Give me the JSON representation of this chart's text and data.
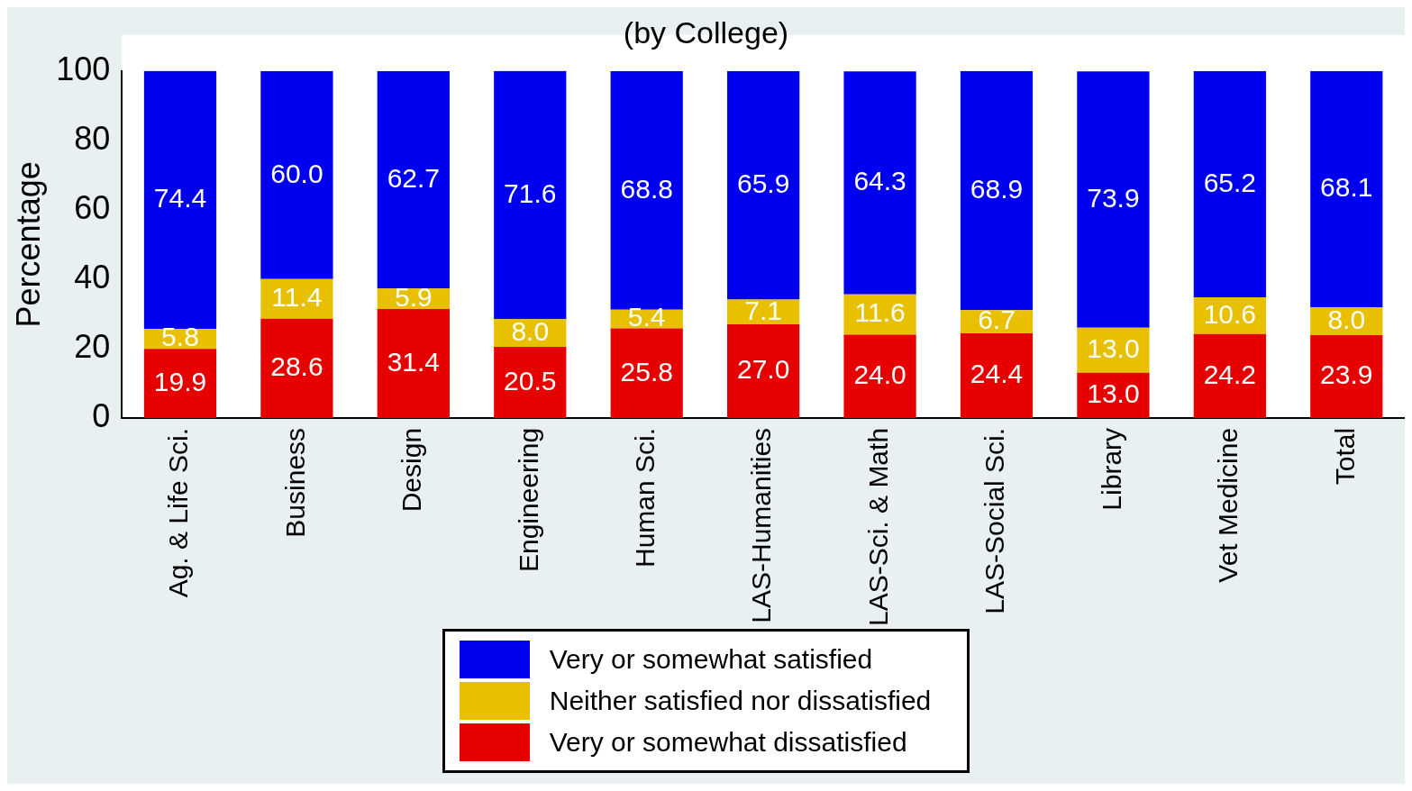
{
  "chart_data": {
    "type": "bar",
    "title": "(by College)",
    "ylabel": "Percentage",
    "categories": [
      "Ag. & Life Sci.",
      "Business",
      "Design",
      "Engineering",
      "Human Sci.",
      "LAS-Humanities",
      "LAS-Sci. & Math",
      "LAS-Social Sci.",
      "Library",
      "Vet Medicine",
      "Total"
    ],
    "series": [
      {
        "name": "Very or somewhat dissatisfied",
        "color": "#e60000",
        "values": [
          19.9,
          28.6,
          31.4,
          20.5,
          25.8,
          27.0,
          24.0,
          24.4,
          13.0,
          24.2,
          23.9
        ],
        "value_labels": [
          "19.9",
          "28.6",
          "31.4",
          "20.5",
          "25.8",
          "27.0",
          "24.0",
          "24.4",
          "13.0",
          "24.2",
          "23.9"
        ]
      },
      {
        "name": "Neither satisfied nor dissatisfied",
        "color": "#e8c000",
        "values": [
          5.8,
          11.4,
          5.9,
          8.0,
          5.4,
          7.1,
          11.6,
          6.7,
          13.0,
          10.6,
          8.0
        ],
        "value_labels": [
          "5.8",
          "11.4",
          "5.9",
          "8.0",
          "5.4",
          "7.1",
          "11.6",
          "6.7",
          "13.0",
          "10.6",
          "8.0"
        ]
      },
      {
        "name": "Very or somewhat satisfied",
        "color": "#0000f0",
        "values": [
          74.4,
          60.0,
          62.7,
          71.6,
          68.8,
          65.9,
          64.3,
          68.9,
          73.9,
          65.2,
          68.1
        ],
        "value_labels": [
          "74.4",
          "60.0",
          "62.7",
          "71.6",
          "68.8",
          "65.9",
          "64.3",
          "68.9",
          "73.9",
          "65.2",
          "68.1"
        ]
      }
    ],
    "stacked": true,
    "ylim": [
      0,
      100
    ],
    "yticks": [
      0,
      20,
      40,
      60,
      80,
      100
    ],
    "grid": false,
    "legend": "bottom"
  }
}
